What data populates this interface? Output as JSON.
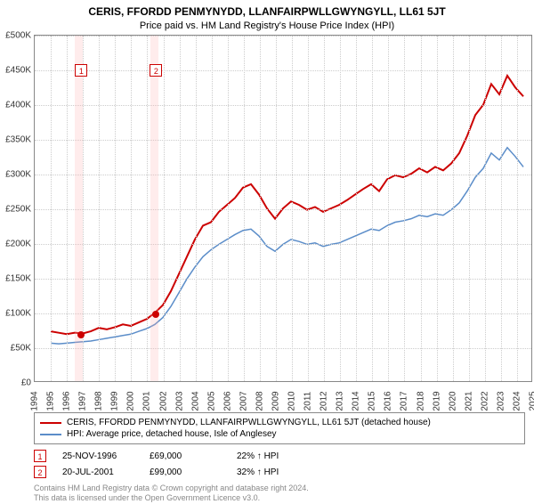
{
  "title": "CERIS, FFORDD PENMYNYDD, LLANFAIRPWLLGWYNGYLL, LL61 5JT",
  "subtitle": "Price paid vs. HM Land Registry's House Price Index (HPI)",
  "chart": {
    "type": "line",
    "background_color": "#ffffff",
    "grid_color": "#cccccc",
    "border_color": "#888888",
    "ylim": [
      0,
      500000
    ],
    "ytick_step": 50000,
    "ytick_prefix": "£",
    "ytick_labels": [
      "£0",
      "£50K",
      "£100K",
      "£150K",
      "£200K",
      "£250K",
      "£300K",
      "£350K",
      "£400K",
      "£450K",
      "£500K"
    ],
    "xlim": [
      1994,
      2025
    ],
    "xtick_step": 1,
    "xtick_labels": [
      "1994",
      "1995",
      "1996",
      "1997",
      "1998",
      "1999",
      "2000",
      "2001",
      "2002",
      "2003",
      "2004",
      "2005",
      "2006",
      "2007",
      "2008",
      "2009",
      "2010",
      "2011",
      "2012",
      "2013",
      "2014",
      "2015",
      "2016",
      "2017",
      "2018",
      "2019",
      "2020",
      "2021",
      "2022",
      "2023",
      "2024",
      "2025"
    ],
    "series": [
      {
        "name": "CERIS, FFORDD PENMYNYDD, LLANFAIRPWLLGWYNGYLL, LL61 5JT (detached house)",
        "color": "#cc0000",
        "line_width": 2,
        "data": [
          [
            1995.0,
            72000
          ],
          [
            1995.5,
            70000
          ],
          [
            1996.0,
            68000
          ],
          [
            1996.5,
            70000
          ],
          [
            1997.0,
            69000
          ],
          [
            1997.5,
            72000
          ],
          [
            1998.0,
            77000
          ],
          [
            1998.5,
            75000
          ],
          [
            1999.0,
            78000
          ],
          [
            1999.5,
            82000
          ],
          [
            2000.0,
            80000
          ],
          [
            2000.5,
            85000
          ],
          [
            2001.0,
            90000
          ],
          [
            2001.5,
            99000
          ],
          [
            2002.0,
            110000
          ],
          [
            2002.5,
            130000
          ],
          [
            2003.0,
            155000
          ],
          [
            2003.5,
            180000
          ],
          [
            2004.0,
            205000
          ],
          [
            2004.5,
            225000
          ],
          [
            2005.0,
            230000
          ],
          [
            2005.5,
            245000
          ],
          [
            2006.0,
            255000
          ],
          [
            2006.5,
            265000
          ],
          [
            2007.0,
            280000
          ],
          [
            2007.5,
            285000
          ],
          [
            2008.0,
            270000
          ],
          [
            2008.5,
            250000
          ],
          [
            2009.0,
            235000
          ],
          [
            2009.5,
            250000
          ],
          [
            2010.0,
            260000
          ],
          [
            2010.5,
            255000
          ],
          [
            2011.0,
            248000
          ],
          [
            2011.5,
            252000
          ],
          [
            2012.0,
            245000
          ],
          [
            2012.5,
            250000
          ],
          [
            2013.0,
            255000
          ],
          [
            2013.5,
            262000
          ],
          [
            2014.0,
            270000
          ],
          [
            2014.5,
            278000
          ],
          [
            2015.0,
            285000
          ],
          [
            2015.5,
            275000
          ],
          [
            2016.0,
            292000
          ],
          [
            2016.5,
            298000
          ],
          [
            2017.0,
            295000
          ],
          [
            2017.5,
            300000
          ],
          [
            2018.0,
            308000
          ],
          [
            2018.5,
            302000
          ],
          [
            2019.0,
            310000
          ],
          [
            2019.5,
            305000
          ],
          [
            2020.0,
            315000
          ],
          [
            2020.5,
            330000
          ],
          [
            2021.0,
            355000
          ],
          [
            2021.5,
            385000
          ],
          [
            2022.0,
            400000
          ],
          [
            2022.5,
            430000
          ],
          [
            2023.0,
            415000
          ],
          [
            2023.5,
            442000
          ],
          [
            2024.0,
            425000
          ],
          [
            2024.5,
            412000
          ]
        ]
      },
      {
        "name": "HPI: Average price, detached house, Isle of Anglesey",
        "color": "#5b8dc9",
        "line_width": 1.5,
        "data": [
          [
            1995.0,
            55000
          ],
          [
            1995.5,
            54000
          ],
          [
            1996.0,
            55000
          ],
          [
            1996.5,
            56000
          ],
          [
            1997.0,
            57000
          ],
          [
            1997.5,
            58000
          ],
          [
            1998.0,
            60000
          ],
          [
            1998.5,
            62000
          ],
          [
            1999.0,
            64000
          ],
          [
            1999.5,
            66000
          ],
          [
            2000.0,
            68000
          ],
          [
            2000.5,
            72000
          ],
          [
            2001.0,
            76000
          ],
          [
            2001.5,
            82000
          ],
          [
            2002.0,
            92000
          ],
          [
            2002.5,
            108000
          ],
          [
            2003.0,
            128000
          ],
          [
            2003.5,
            148000
          ],
          [
            2004.0,
            165000
          ],
          [
            2004.5,
            180000
          ],
          [
            2005.0,
            190000
          ],
          [
            2005.5,
            198000
          ],
          [
            2006.0,
            205000
          ],
          [
            2006.5,
            212000
          ],
          [
            2007.0,
            218000
          ],
          [
            2007.5,
            220000
          ],
          [
            2008.0,
            210000
          ],
          [
            2008.5,
            195000
          ],
          [
            2009.0,
            188000
          ],
          [
            2009.5,
            198000
          ],
          [
            2010.0,
            205000
          ],
          [
            2010.5,
            202000
          ],
          [
            2011.0,
            198000
          ],
          [
            2011.5,
            200000
          ],
          [
            2012.0,
            195000
          ],
          [
            2012.5,
            198000
          ],
          [
            2013.0,
            200000
          ],
          [
            2013.5,
            205000
          ],
          [
            2014.0,
            210000
          ],
          [
            2014.5,
            215000
          ],
          [
            2015.0,
            220000
          ],
          [
            2015.5,
            218000
          ],
          [
            2016.0,
            225000
          ],
          [
            2016.5,
            230000
          ],
          [
            2017.0,
            232000
          ],
          [
            2017.5,
            235000
          ],
          [
            2018.0,
            240000
          ],
          [
            2018.5,
            238000
          ],
          [
            2019.0,
            242000
          ],
          [
            2019.5,
            240000
          ],
          [
            2020.0,
            248000
          ],
          [
            2020.5,
            258000
          ],
          [
            2021.0,
            275000
          ],
          [
            2021.5,
            295000
          ],
          [
            2022.0,
            308000
          ],
          [
            2022.5,
            330000
          ],
          [
            2023.0,
            320000
          ],
          [
            2023.5,
            338000
          ],
          [
            2024.0,
            325000
          ],
          [
            2024.5,
            310000
          ]
        ]
      }
    ],
    "marker_bands": [
      {
        "x": 1996.5,
        "width_years": 0.5,
        "color": "rgba(255,180,180,0.25)"
      },
      {
        "x": 2001.2,
        "width_years": 0.5,
        "color": "rgba(255,180,180,0.25)"
      }
    ],
    "marker_points": [
      {
        "label": "1",
        "x": 1996.9,
        "y": 69000,
        "box_y": 450000
      },
      {
        "label": "2",
        "x": 2001.55,
        "y": 99000,
        "box_y": 450000
      }
    ]
  },
  "legend": {
    "items": [
      {
        "color": "#cc0000",
        "label": "CERIS, FFORDD PENMYNYDD, LLANFAIRPWLLGWYNGYLL, LL61 5JT (detached house)"
      },
      {
        "color": "#5b8dc9",
        "label": "HPI: Average price, detached house, Isle of Anglesey"
      }
    ]
  },
  "annotations": [
    {
      "num": "1",
      "date": "25-NOV-1996",
      "price": "£69,000",
      "delta": "22% ↑ HPI"
    },
    {
      "num": "2",
      "date": "20-JUL-2001",
      "price": "£99,000",
      "delta": "32% ↑ HPI"
    }
  ],
  "footer_line1": "Contains HM Land Registry data © Crown copyright and database right 2024.",
  "footer_line2": "This data is licensed under the Open Government Licence v3.0."
}
